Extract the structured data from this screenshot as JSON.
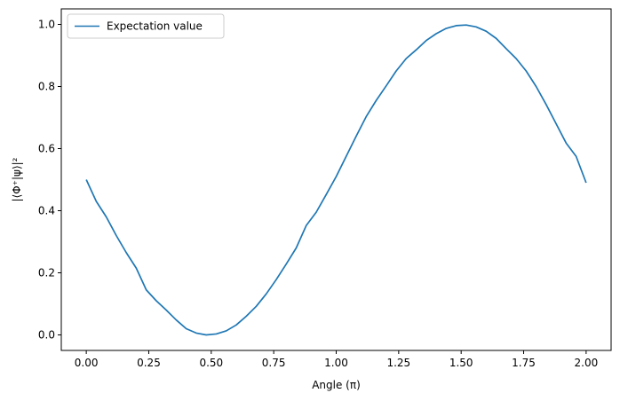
{
  "chart_data": {
    "type": "line",
    "xlabel": "Angle (π)",
    "ylabel": "|⟨Φ⁺|ψ⟩|²",
    "xlim": [
      -0.1,
      2.1
    ],
    "ylim": [
      -0.05,
      1.05
    ],
    "x_ticks": [
      0.0,
      0.25,
      0.5,
      0.75,
      1.0,
      1.25,
      1.5,
      1.75,
      2.0
    ],
    "x_tick_labels": [
      "0.00",
      "0.25",
      "0.50",
      "0.75",
      "1.00",
      "1.25",
      "1.50",
      "1.75",
      "2.00"
    ],
    "y_ticks": [
      0.0,
      0.2,
      0.4,
      0.6,
      0.8,
      1.0
    ],
    "y_tick_labels": [
      "0.0",
      "0.2",
      "0.4",
      "0.6",
      "0.8",
      "1.0"
    ],
    "grid": false,
    "legend_position": "upper-left",
    "series": [
      {
        "name": "Expectation value",
        "color": "#1f77b4",
        "x": [
          0.0,
          0.04,
          0.08,
          0.12,
          0.16,
          0.2,
          0.24,
          0.28,
          0.32,
          0.36,
          0.4,
          0.44,
          0.48,
          0.52,
          0.56,
          0.6,
          0.64,
          0.68,
          0.72,
          0.76,
          0.8,
          0.84,
          0.88,
          0.92,
          0.96,
          1.0,
          1.04,
          1.08,
          1.12,
          1.16,
          1.2,
          1.24,
          1.28,
          1.32,
          1.36,
          1.4,
          1.44,
          1.48,
          1.52,
          1.56,
          1.6,
          1.64,
          1.68,
          1.72,
          1.76,
          1.8,
          1.84,
          1.88,
          1.92,
          1.96,
          2.0
        ],
        "y": [
          0.5,
          0.43,
          0.38,
          0.32,
          0.265,
          0.215,
          0.145,
          0.11,
          0.08,
          0.048,
          0.02,
          0.006,
          0.0,
          0.003,
          0.013,
          0.032,
          0.06,
          0.092,
          0.132,
          0.178,
          0.228,
          0.28,
          0.352,
          0.395,
          0.452,
          0.51,
          0.575,
          0.64,
          0.703,
          0.755,
          0.802,
          0.85,
          0.89,
          0.918,
          0.948,
          0.97,
          0.987,
          0.996,
          0.998,
          0.992,
          0.978,
          0.955,
          0.922,
          0.89,
          0.85,
          0.8,
          0.742,
          0.68,
          0.618,
          0.575,
          0.49
        ]
      }
    ]
  }
}
